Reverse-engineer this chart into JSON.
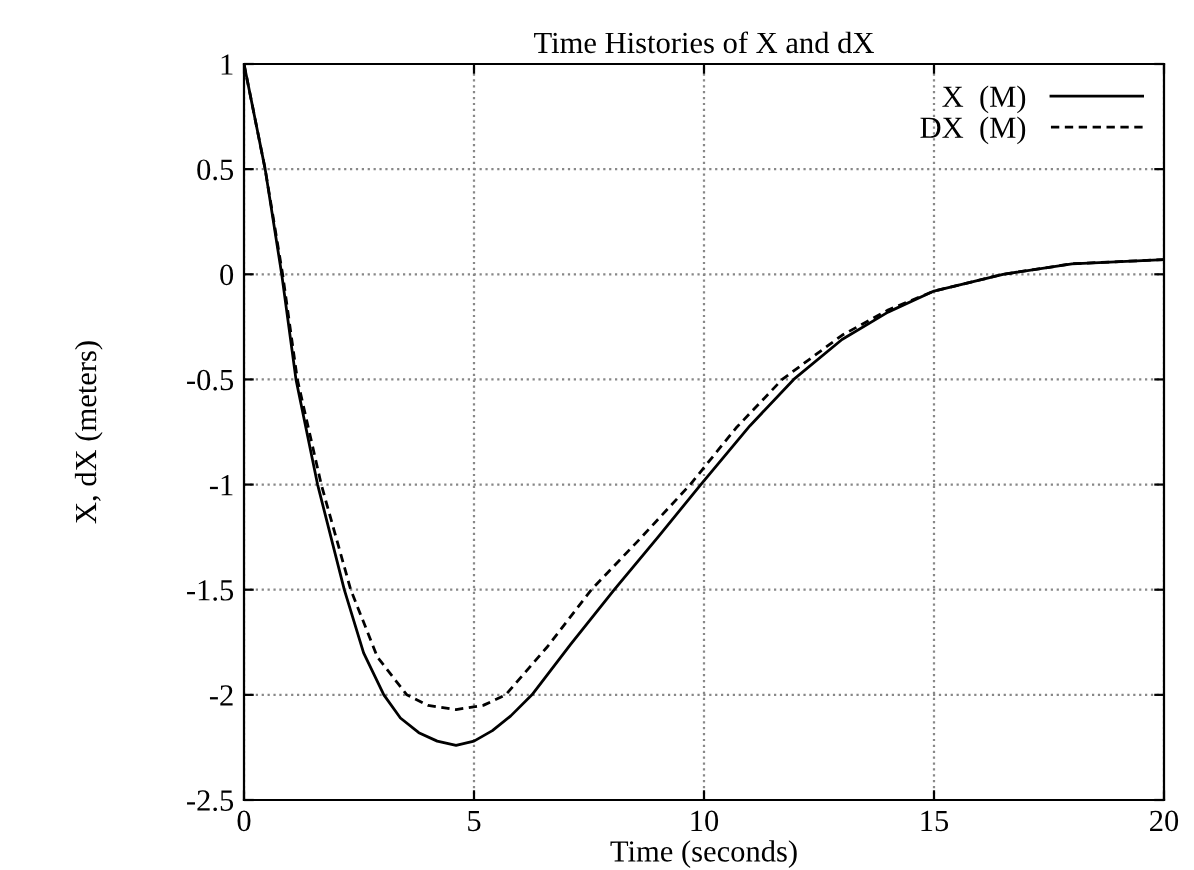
{
  "chart_data": {
    "type": "line",
    "title": "Time Histories of X and dX",
    "xlabel": "Time (seconds)",
    "ylabel": "X, dX (meters)",
    "xlim": [
      0,
      20
    ],
    "ylim": [
      -2.5,
      1
    ],
    "xticks": [
      0,
      5,
      10,
      15,
      20
    ],
    "yticks": [
      -2.5,
      -2,
      -1.5,
      -1,
      -0.5,
      0,
      0.5,
      1
    ],
    "grid": true,
    "legend": "top right",
    "series": [
      {
        "name": "X  (M)",
        "color": "#000000",
        "line_style": "solid",
        "x": [
          0,
          0.46,
          0.82,
          1.13,
          1.6,
          2.18,
          2.6,
          3.04,
          3.4,
          3.8,
          4.2,
          4.61,
          5.0,
          5.4,
          5.8,
          6.26,
          7.1,
          8.05,
          9.0,
          9.93,
          11,
          11.95,
          13,
          14,
          15,
          16.5,
          18,
          20
        ],
        "values": [
          1,
          0.5,
          0,
          -0.5,
          -1,
          -1.5,
          -1.8,
          -2,
          -2.11,
          -2.18,
          -2.22,
          -2.24,
          -2.22,
          -2.17,
          -2.1,
          -2,
          -1.76,
          -1.5,
          -1.25,
          -1,
          -0.72,
          -0.5,
          -0.31,
          -0.18,
          -0.08,
          0,
          0.05,
          0.07
        ]
      },
      {
        "name": "DX  (M)",
        "color": "#000000",
        "line_style": "dashed",
        "x": [
          0,
          0.46,
          0.84,
          1.16,
          1.68,
          2.32,
          2.9,
          3.54,
          4.0,
          4.61,
          5.2,
          5.69,
          6.6,
          7.55,
          8.6,
          9.7,
          10.7,
          11.7,
          13,
          14,
          15,
          16.5,
          18,
          20
        ],
        "values": [
          1,
          0.5,
          0,
          -0.5,
          -1,
          -1.5,
          -1.82,
          -2,
          -2.05,
          -2.07,
          -2.05,
          -2,
          -1.77,
          -1.5,
          -1.26,
          -1,
          -0.73,
          -0.5,
          -0.29,
          -0.17,
          -0.08,
          0,
          0.05,
          0.07
        ]
      }
    ]
  }
}
